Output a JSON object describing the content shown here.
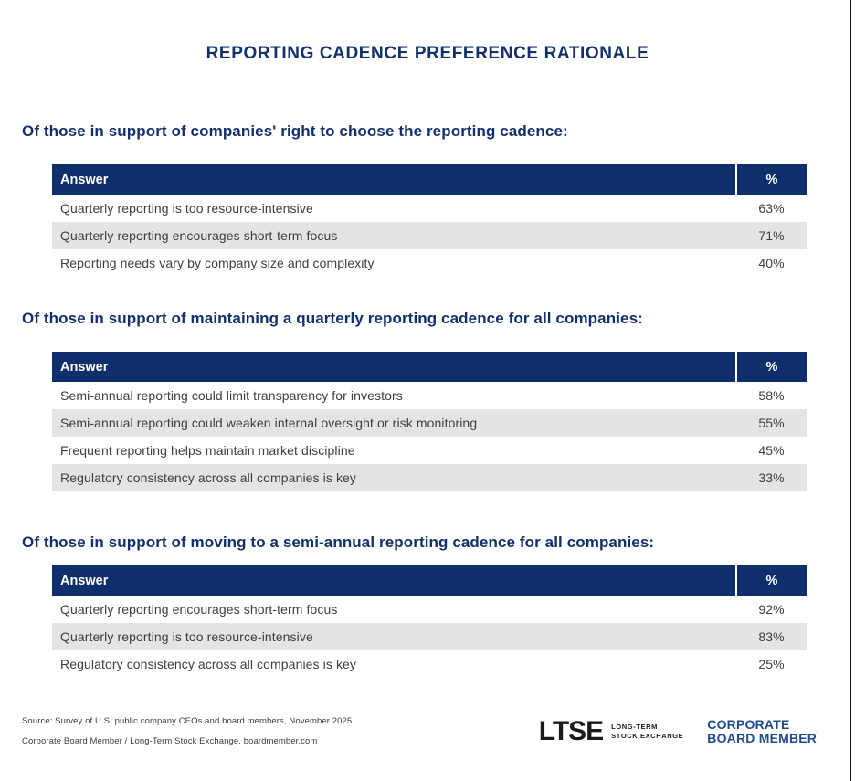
{
  "page_title": "REPORTING CADENCE PREFERENCE RATIONALE",
  "colors": {
    "header_navy": "#0E2F6B",
    "heading_text_navy": "#12306B",
    "row_stripe_gray": "#E4E4E4",
    "body_text": "#3E3E3E",
    "cbm_logo_blue": "#1E4C8F",
    "ltse_logo_black": "#1A1A1A"
  },
  "chart_data": [
    {
      "type": "table",
      "title": "Of those in support of companies' right to choose the reporting cadence:",
      "columns": [
        "Answer",
        "%"
      ],
      "rows": [
        [
          "Quarterly reporting is too resource-intensive",
          "63%"
        ],
        [
          "Quarterly reporting encourages short-term focus",
          "71%"
        ],
        [
          "Reporting needs vary by company size and complexity",
          "40%"
        ]
      ]
    },
    {
      "type": "table",
      "title": "Of those in support of maintaining a quarterly reporting cadence for all companies:",
      "columns": [
        "Answer",
        "%"
      ],
      "rows": [
        [
          "Semi-annual reporting could limit transparency for investors",
          "58%"
        ],
        [
          "Semi-annual reporting could weaken internal oversight or risk monitoring",
          "55%"
        ],
        [
          "Frequent reporting helps maintain market discipline",
          "45%"
        ],
        [
          "Regulatory consistency across all companies is key",
          "33%"
        ]
      ]
    },
    {
      "type": "table",
      "title": "Of those in support of moving to a semi-annual reporting cadence for all companies:",
      "columns": [
        "Answer",
        "%"
      ],
      "rows": [
        [
          "Quarterly reporting encourages short-term focus",
          "92%"
        ],
        [
          "Quarterly reporting is too resource-intensive",
          "83%"
        ],
        [
          "Regulatory consistency across all companies is key",
          "25%"
        ]
      ]
    }
  ],
  "footer": {
    "source_line1": "Source: Survey of U.S. public company CEOs and board members, November 2025.",
    "source_line2": "Corporate Board Member / Long-Term Stock Exchange. boardmember.com",
    "ltse_logo": {
      "wordmark": "LTSE",
      "tagline_line1": "LONG-TERM",
      "tagline_line2": "STOCK EXCHANGE"
    },
    "cbm_logo": {
      "line1": "CORPORATE",
      "line2": "BOARD MEMBER",
      "trademark": "’"
    }
  }
}
